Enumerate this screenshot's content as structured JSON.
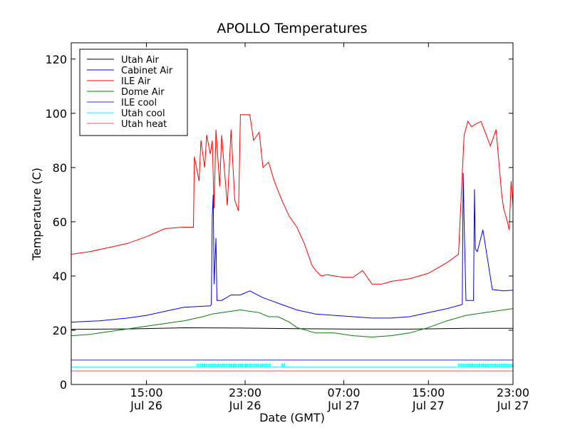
{
  "chart_data": {
    "type": "line",
    "title": "APOLLO Temperatures",
    "xlabel": "Date (GMT)",
    "ylabel": "Temperature (C)",
    "xlim": [
      11,
      34.5
    ],
    "ylim": [
      0,
      126
    ],
    "grid": false,
    "legend_position": "top-left",
    "yticks": [
      0,
      20,
      40,
      60,
      80,
      100,
      120
    ],
    "xticks": [
      {
        "x": 15,
        "line1": "15:00",
        "line2": "Jul 26"
      },
      {
        "x": 20.25,
        "line1": "23:00",
        "line2": "Jul 26"
      },
      {
        "x": 25.5,
        "line1": "07:00",
        "line2": "Jul 27"
      },
      {
        "x": 30.0,
        "line1": "15:00",
        "line2": "Jul 27"
      },
      {
        "x": 34.5,
        "line1": "23:00",
        "line2": "Jul 27"
      }
    ],
    "series": [
      {
        "name": "Utah Air",
        "color": "#000000",
        "x": [
          11,
          14,
          17,
          20,
          23,
          26,
          29,
          32,
          34.5
        ],
        "y": [
          20.3,
          20.5,
          20.9,
          20.8,
          20.6,
          20.4,
          20.4,
          20.7,
          20.7
        ]
      },
      {
        "name": "Cabinet Air",
        "color": "#0000ff",
        "x": [
          11,
          12.5,
          14,
          15,
          16,
          17,
          18.4,
          18.45,
          18.5,
          18.55,
          18.6,
          18.7,
          18.75,
          19,
          19.5,
          20.0,
          20.5,
          21.2,
          22,
          23,
          24,
          25,
          26,
          27,
          28,
          29,
          30,
          31,
          31.8,
          31.85,
          31.9,
          32.0,
          32.4,
          32.45,
          32.5,
          32.6,
          32.9,
          33.4,
          34.0,
          34.5
        ],
        "y": [
          23,
          23.5,
          24.5,
          25.5,
          27,
          28.5,
          29,
          29.5,
          62,
          70,
          37,
          54,
          31,
          31,
          33,
          33,
          34.5,
          32,
          30,
          27.5,
          26,
          25.5,
          25,
          24.5,
          24.5,
          25,
          26.5,
          28,
          29.5,
          78,
          60,
          31,
          31,
          72,
          50,
          49,
          57,
          35,
          34.5,
          34.8
        ]
      },
      {
        "name": "ILE Air",
        "color": "#ff0000",
        "x": [
          11,
          12,
          13,
          14,
          15,
          16,
          17,
          17.5,
          17.55,
          17.8,
          17.9,
          18.1,
          18.2,
          18.4,
          18.5,
          18.6,
          18.7,
          18.9,
          19.0,
          19.3,
          19.5,
          19.7,
          19.9,
          20.0,
          20.2,
          20.5,
          20.7,
          21.0,
          21.2,
          21.5,
          21.8,
          22.2,
          22.6,
          23.0,
          23.4,
          23.8,
          24.0,
          24.3,
          24.6,
          25.0,
          25.5,
          26.0,
          26.5,
          27.0,
          27.5,
          27.8,
          28.0,
          29.0,
          30.0,
          31.0,
          31.4,
          31.6,
          31.9,
          32.1,
          32.3,
          32.5,
          32.8,
          33.3,
          33.6,
          33.8,
          33.9,
          34.0,
          34.2,
          34.3,
          34.4,
          34.5
        ],
        "y": [
          48,
          49,
          50.5,
          52,
          54.5,
          57.5,
          58,
          58,
          84,
          75,
          90,
          80,
          92,
          85,
          90,
          65,
          94,
          73,
          92,
          66,
          94,
          68,
          64,
          99.5,
          99.5,
          99.5,
          90,
          93,
          80,
          82,
          75,
          68,
          62,
          58,
          52,
          44,
          42,
          40,
          40.5,
          40,
          39.5,
          39.5,
          42,
          37,
          37,
          37.5,
          38,
          39,
          41,
          45,
          47,
          48,
          92,
          97,
          95,
          96,
          97,
          88,
          94,
          78,
          70,
          65,
          60,
          57,
          75,
          66
        ]
      },
      {
        "name": "Dome Air",
        "color": "#008000",
        "x": [
          11,
          12,
          13,
          14,
          15,
          16,
          17,
          18,
          18.5,
          19,
          20,
          21,
          21.5,
          22,
          22.6,
          23,
          24,
          25,
          26,
          27,
          28,
          29,
          30,
          31,
          32,
          33,
          34,
          34.5
        ],
        "y": [
          18,
          18.5,
          19.5,
          20.5,
          21.5,
          22.5,
          23.5,
          25,
          26,
          26.5,
          27.5,
          26.5,
          25,
          25,
          23,
          21,
          19,
          19,
          18,
          17.5,
          18,
          19,
          21,
          23.5,
          25.5,
          26.5,
          27.5,
          28
        ]
      },
      {
        "name": "ILE cool",
        "color": "#3333aa",
        "x": [
          11,
          34.5
        ],
        "y": [
          9,
          9
        ]
      },
      {
        "name": "Utah cool",
        "color": "#00ffff",
        "x": [
          11,
          34.5
        ],
        "y": [
          6.5,
          6.5
        ]
      },
      {
        "name": "Utah heat",
        "color": "#ff5050",
        "x": [
          11,
          34.5
        ],
        "y": [
          5,
          5
        ]
      }
    ],
    "pulse_bands": [
      {
        "name": "Utah cool",
        "color": "#00ffff",
        "from": 17.7,
        "to": 21.6,
        "step": 0.12,
        "low": 6.5,
        "high": 7.5
      },
      {
        "name": "Utah cool",
        "color": "#00ffff",
        "from": 22.2,
        "to": 22.4,
        "step": 0.12,
        "low": 6.5,
        "high": 7.5
      },
      {
        "name": "Utah cool",
        "color": "#00ffff",
        "from": 31.6,
        "to": 34.5,
        "step": 0.12,
        "low": 6.5,
        "high": 7.5
      }
    ]
  }
}
